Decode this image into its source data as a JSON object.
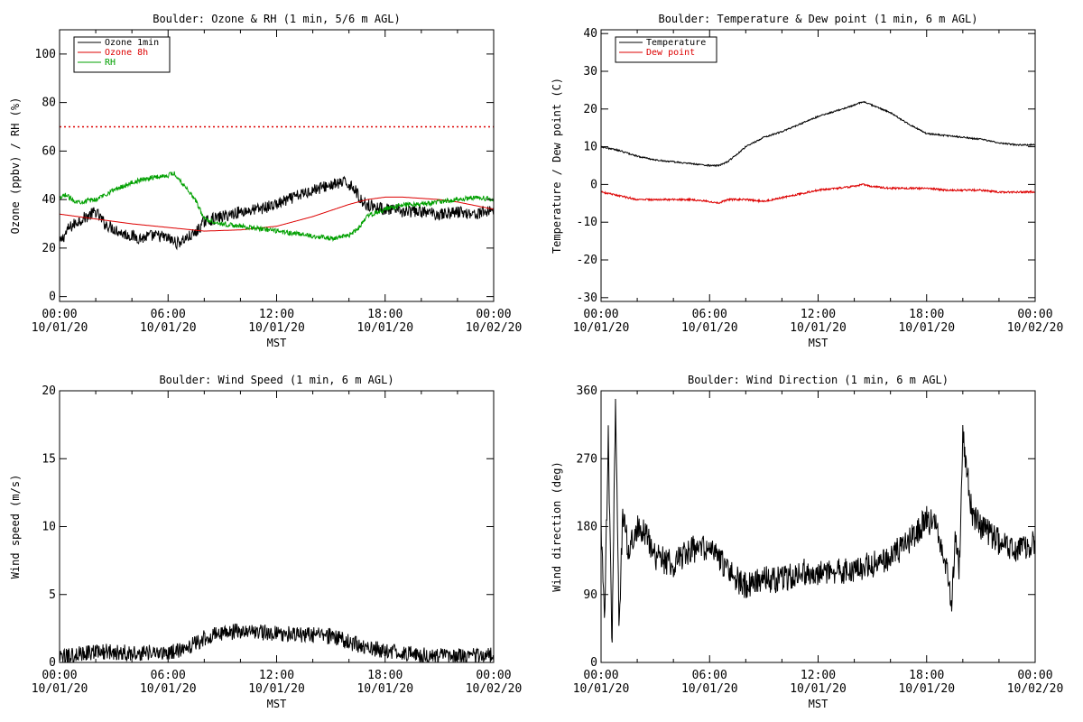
{
  "chart_data": [
    {
      "id": "ozone",
      "type": "line",
      "title": "Boulder: Ozone & RH (1 min, 5/6 m AGL)",
      "xlabel": "MST",
      "ylabel": "Ozone (ppbv) / RH (%)",
      "xlim": [
        0,
        24
      ],
      "ylim": [
        -2,
        110
      ],
      "xticks": [
        {
          "v": 0,
          "l1": "00:00",
          "l2": "10/01/20"
        },
        {
          "v": 6,
          "l1": "06:00",
          "l2": "10/01/20"
        },
        {
          "v": 12,
          "l1": "12:00",
          "l2": "10/01/20"
        },
        {
          "v": 18,
          "l1": "18:00",
          "l2": "10/01/20"
        },
        {
          "v": 24,
          "l1": "00:00",
          "l2": "10/02/20"
        }
      ],
      "yticks": [
        0,
        20,
        40,
        60,
        80,
        100
      ],
      "legend": "top-left",
      "reference_line": {
        "y": 70,
        "color": "#dd0000",
        "style": "dotted"
      },
      "series": [
        {
          "name": "Ozone 1min",
          "color": "#000000",
          "noise": 2.5,
          "x": [
            0,
            0.5,
            1.0,
            1.5,
            2.0,
            2.5,
            3.0,
            3.5,
            4.0,
            4.5,
            5.0,
            5.5,
            6.0,
            6.5,
            7.0,
            7.5,
            8.0,
            9.0,
            10.0,
            11.0,
            12.0,
            13.0,
            14.0,
            15.0,
            15.8,
            16.3,
            16.6,
            17.0,
            18.0,
            19.0,
            20.0,
            21.0,
            22.0,
            23.0,
            24.0
          ],
          "y": [
            22,
            28,
            31,
            33,
            35,
            30,
            28,
            26,
            25,
            24,
            25,
            25,
            24,
            22,
            24,
            26,
            31,
            33,
            35,
            36,
            38,
            41,
            44,
            46,
            47,
            45,
            40,
            38,
            36,
            35,
            35,
            34,
            35,
            34,
            36
          ]
        },
        {
          "name": "Ozone 8h",
          "color": "#dd0000",
          "noise": 0,
          "x": [
            0,
            2,
            4,
            6,
            8,
            10,
            12,
            14,
            16,
            17,
            18,
            19,
            20,
            21,
            22,
            23,
            24
          ],
          "y": [
            34,
            32,
            30,
            28.5,
            27,
            27.5,
            29,
            33,
            38,
            40,
            41,
            41,
            40.5,
            40,
            39,
            37.5,
            36
          ]
        },
        {
          "name": "RH",
          "color": "#00a000",
          "noise": 1.0,
          "x": [
            0,
            0.3,
            0.7,
            1.0,
            2.0,
            3.0,
            4.0,
            5.0,
            6.0,
            6.3,
            7.0,
            7.5,
            8.0,
            9.0,
            10.0,
            11.0,
            12.0,
            13.0,
            14.0,
            15.0,
            16.0,
            16.5,
            17.0,
            18.0,
            19.0,
            20.0,
            21.0,
            22.0,
            23.0,
            24.0
          ],
          "y": [
            40,
            42,
            40,
            39,
            40,
            44,
            47,
            49,
            50,
            51,
            45,
            40,
            32,
            30,
            29,
            28,
            27,
            26,
            25,
            24,
            25,
            28,
            33,
            36,
            38,
            38,
            39,
            40,
            41,
            40
          ]
        }
      ]
    },
    {
      "id": "temp",
      "type": "line",
      "title": "Boulder: Temperature & Dew point (1 min, 6 m AGL)",
      "xlabel": "MST",
      "ylabel": "Temperature / Dew point (C)",
      "xlim": [
        0,
        24
      ],
      "ylim": [
        -31,
        41
      ],
      "xticks": [
        {
          "v": 0,
          "l1": "00:00",
          "l2": "10/01/20"
        },
        {
          "v": 6,
          "l1": "06:00",
          "l2": "10/01/20"
        },
        {
          "v": 12,
          "l1": "12:00",
          "l2": "10/01/20"
        },
        {
          "v": 18,
          "l1": "18:00",
          "l2": "10/01/20"
        },
        {
          "v": 24,
          "l1": "00:00",
          "l2": "10/02/20"
        }
      ],
      "yticks": [
        -30,
        -20,
        -10,
        0,
        10,
        20,
        30,
        40
      ],
      "legend": "top-left",
      "series": [
        {
          "name": "Temperature",
          "color": "#000000",
          "noise": 0.2,
          "x": [
            0,
            1,
            2,
            3,
            4,
            5,
            6,
            6.5,
            7,
            7.5,
            8,
            9,
            10,
            11,
            12,
            13,
            14,
            14.5,
            15,
            16,
            17,
            18,
            19,
            20,
            21,
            22,
            23,
            24
          ],
          "y": [
            10,
            9,
            7.5,
            6.5,
            6,
            5.5,
            5,
            5,
            6,
            8,
            10,
            12.5,
            14,
            16,
            18,
            19.5,
            21,
            22,
            21,
            19,
            16,
            13.5,
            13,
            12.5,
            12,
            11,
            10.5,
            10.5
          ]
        },
        {
          "name": "Dew point",
          "color": "#dd0000",
          "noise": 0.25,
          "x": [
            0,
            1,
            2,
            3,
            4,
            5,
            6,
            6.5,
            7,
            8,
            9,
            10,
            11,
            12,
            13,
            14,
            14.5,
            15,
            16,
            17,
            18,
            19,
            20,
            21,
            22,
            23,
            24
          ],
          "y": [
            -2,
            -3,
            -4,
            -4,
            -4,
            -4,
            -4.5,
            -5,
            -4,
            -4,
            -4.5,
            -3.5,
            -2.5,
            -1.5,
            -1,
            -0.5,
            0,
            -0.5,
            -1,
            -1,
            -1,
            -1.5,
            -1.5,
            -1.5,
            -2,
            -2,
            -2
          ]
        }
      ]
    },
    {
      "id": "wind_speed",
      "type": "line",
      "title": "Boulder: Wind Speed (1 min, 6 m AGL)",
      "xlabel": "MST",
      "ylabel": "Wind speed (m/s)",
      "xlim": [
        0,
        24
      ],
      "ylim": [
        0,
        20
      ],
      "xticks": [
        {
          "v": 0,
          "l1": "00:00",
          "l2": "10/01/20"
        },
        {
          "v": 6,
          "l1": "06:00",
          "l2": "10/01/20"
        },
        {
          "v": 12,
          "l1": "12:00",
          "l2": "10/01/20"
        },
        {
          "v": 18,
          "l1": "18:00",
          "l2": "10/01/20"
        },
        {
          "v": 24,
          "l1": "00:00",
          "l2": "10/02/20"
        }
      ],
      "yticks": [
        0,
        5,
        10,
        15,
        20
      ],
      "series": [
        {
          "name": "",
          "color": "#000000",
          "noise": 0.6,
          "x": [
            0,
            1,
            2,
            3,
            4,
            5,
            6,
            7,
            8,
            9,
            10,
            11,
            12,
            13,
            14,
            15,
            16,
            17,
            18,
            19,
            20,
            21,
            22,
            23,
            24
          ],
          "y": [
            0.3,
            0.6,
            0.8,
            0.8,
            0.7,
            0.7,
            0.7,
            1.0,
            1.8,
            2.2,
            2.3,
            2.2,
            2.2,
            2.0,
            2.0,
            1.9,
            1.5,
            1.1,
            0.9,
            0.7,
            0.5,
            0.5,
            0.5,
            0.5,
            0.6
          ]
        }
      ]
    },
    {
      "id": "wind_dir",
      "type": "line",
      "title": "Boulder: Wind Direction (1 min, 6 m AGL)",
      "xlabel": "MST",
      "ylabel": "Wind direction (deg)",
      "xlim": [
        0,
        24
      ],
      "ylim": [
        0,
        360
      ],
      "xticks": [
        {
          "v": 0,
          "l1": "00:00",
          "l2": "10/01/20"
        },
        {
          "v": 6,
          "l1": "06:00",
          "l2": "10/01/20"
        },
        {
          "v": 12,
          "l1": "12:00",
          "l2": "10/01/20"
        },
        {
          "v": 18,
          "l1": "18:00",
          "l2": "10/01/20"
        },
        {
          "v": 24,
          "l1": "00:00",
          "l2": "10/02/20"
        }
      ],
      "yticks": [
        0,
        90,
        180,
        270,
        360
      ],
      "series": [
        {
          "name": "",
          "color": "#000000",
          "noise": 18,
          "x": [
            0,
            0.2,
            0.4,
            0.6,
            0.8,
            1.0,
            1.2,
            1.5,
            2.0,
            2.5,
            3.0,
            4.0,
            5.0,
            6.0,
            6.5,
            7.0,
            8.0,
            9.0,
            10.0,
            11.0,
            12.0,
            13.0,
            14.0,
            15.0,
            16.0,
            17.0,
            18.0,
            18.5,
            19.0,
            19.4,
            19.6,
            19.8,
            20.0,
            20.5,
            21.0,
            22.0,
            23.0,
            24.0
          ],
          "y": [
            180,
            60,
            300,
            20,
            340,
            40,
            200,
            150,
            180,
            170,
            140,
            130,
            150,
            150,
            140,
            120,
            100,
            110,
            110,
            120,
            120,
            120,
            125,
            130,
            140,
            160,
            190,
            180,
            140,
            80,
            170,
            120,
            300,
            200,
            180,
            160,
            150,
            160
          ]
        }
      ]
    }
  ]
}
